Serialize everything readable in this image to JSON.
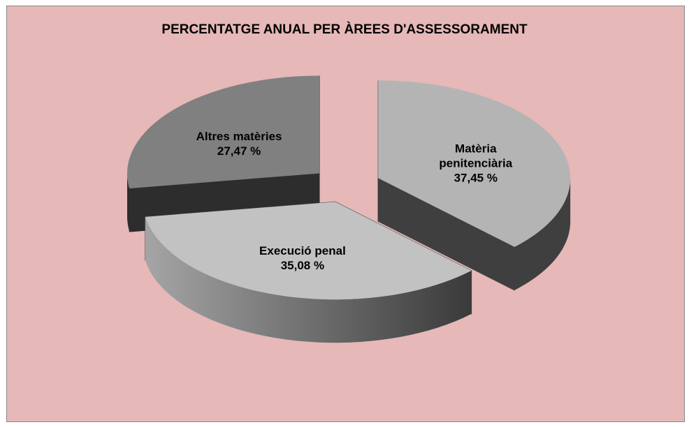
{
  "chart_data": {
    "type": "pie",
    "title": "PERCENTATGE ANUAL PER ÀREES D'ASSESSORAMENT",
    "categories": [
      "Matèria penitenciària",
      "Execució penal",
      "Altres matèries"
    ],
    "values": [
      37.45,
      35.08,
      27.47
    ],
    "value_labels": [
      "37,45 %",
      "35,08 %",
      "27,47 %"
    ],
    "colors": [
      "#b4b4b4",
      "#c2c2c2",
      "#808080"
    ],
    "background": "#e6b8b8"
  }
}
